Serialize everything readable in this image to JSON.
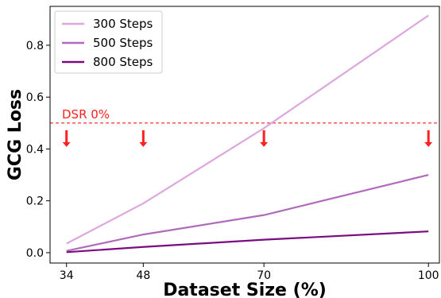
{
  "chart_data": {
    "type": "line",
    "xlabel": "Dataset Size (%)",
    "ylabel": "GCG Loss",
    "x": [
      34,
      48,
      70,
      100
    ],
    "x_ticks": [
      34,
      48,
      70,
      100
    ],
    "y_ticks": [
      0.0,
      0.2,
      0.4,
      0.6,
      0.8
    ],
    "y_tick_labels": [
      "0.0",
      "0.2",
      "0.4",
      "0.6",
      "0.8"
    ],
    "ylim": [
      -0.04,
      0.95
    ],
    "grid": false,
    "legend_position": "top-left",
    "series": [
      {
        "name": "300 Steps",
        "color": "#dda8dd",
        "values": [
          0.035,
          0.19,
          0.48,
          0.915
        ]
      },
      {
        "name": "500 Steps",
        "color": "#b06cba",
        "values": [
          0.007,
          0.07,
          0.145,
          0.3
        ]
      },
      {
        "name": "800 Steps",
        "color": "#7b0c80",
        "values": [
          0.002,
          0.022,
          0.05,
          0.082
        ]
      }
    ],
    "threshold": {
      "label": "DSR 0%",
      "y": 0.5,
      "color": "#ff2020"
    },
    "arrows_at_x": [
      34,
      48,
      70,
      100
    ]
  }
}
